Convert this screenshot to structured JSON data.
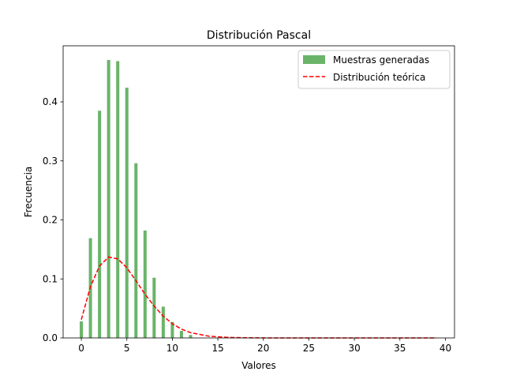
{
  "chart_data": {
    "type": "bar",
    "title": "Distribución Pascal",
    "xlabel": "Valores",
    "ylabel": "Frecuencia",
    "xlim": [
      -2.0,
      41.0
    ],
    "ylim": [
      0,
      0.495
    ],
    "xticks": [
      0,
      5,
      10,
      15,
      20,
      25,
      30,
      35,
      40
    ],
    "yticks": [
      0.0,
      0.1,
      0.2,
      0.3,
      0.4
    ],
    "xtick_labels": [
      "0",
      "5",
      "10",
      "15",
      "20",
      "25",
      "30",
      "35",
      "40"
    ],
    "ytick_labels": [
      "0.0",
      "0.1",
      "0.2",
      "0.3",
      "0.4"
    ],
    "grid": false,
    "legend_position": "top-right",
    "bar_width": 0.35,
    "series": [
      {
        "name": "Muestras generadas",
        "kind": "bar",
        "color": "#6ab46a",
        "x": [
          0,
          1,
          2,
          3,
          4,
          5,
          6,
          7,
          8,
          9,
          10,
          11,
          12
        ],
        "values": [
          0.028,
          0.169,
          0.385,
          0.471,
          0.469,
          0.424,
          0.296,
          0.182,
          0.102,
          0.053,
          0.027,
          0.012,
          0.005
        ]
      },
      {
        "name": "Distribución teórica",
        "kind": "line",
        "style": "dashed",
        "color": "#ff0000",
        "x": [
          0,
          1,
          2,
          3,
          4,
          5,
          6,
          7,
          8,
          9,
          10,
          11,
          12,
          13,
          14,
          15,
          16,
          17,
          18,
          19,
          20,
          21,
          22,
          23,
          24,
          25,
          26,
          27,
          28,
          29,
          30,
          31,
          32,
          33,
          34,
          35,
          36,
          37,
          38,
          39
        ],
        "values": [
          0.031,
          0.087,
          0.122,
          0.137,
          0.134,
          0.119,
          0.097,
          0.074,
          0.054,
          0.037,
          0.024,
          0.015,
          0.009,
          0.006,
          0.003,
          0.002,
          0.001,
          0.0006,
          0.0003,
          0.0002,
          0.0001,
          5e-05,
          3e-05,
          1e-05,
          0.0,
          0.0,
          0.0,
          0.0,
          0.0,
          0.0,
          0.0,
          0.0,
          0.0,
          0.0,
          0.0,
          0.0,
          0.0,
          0.0,
          0.0,
          0.0
        ]
      }
    ]
  }
}
